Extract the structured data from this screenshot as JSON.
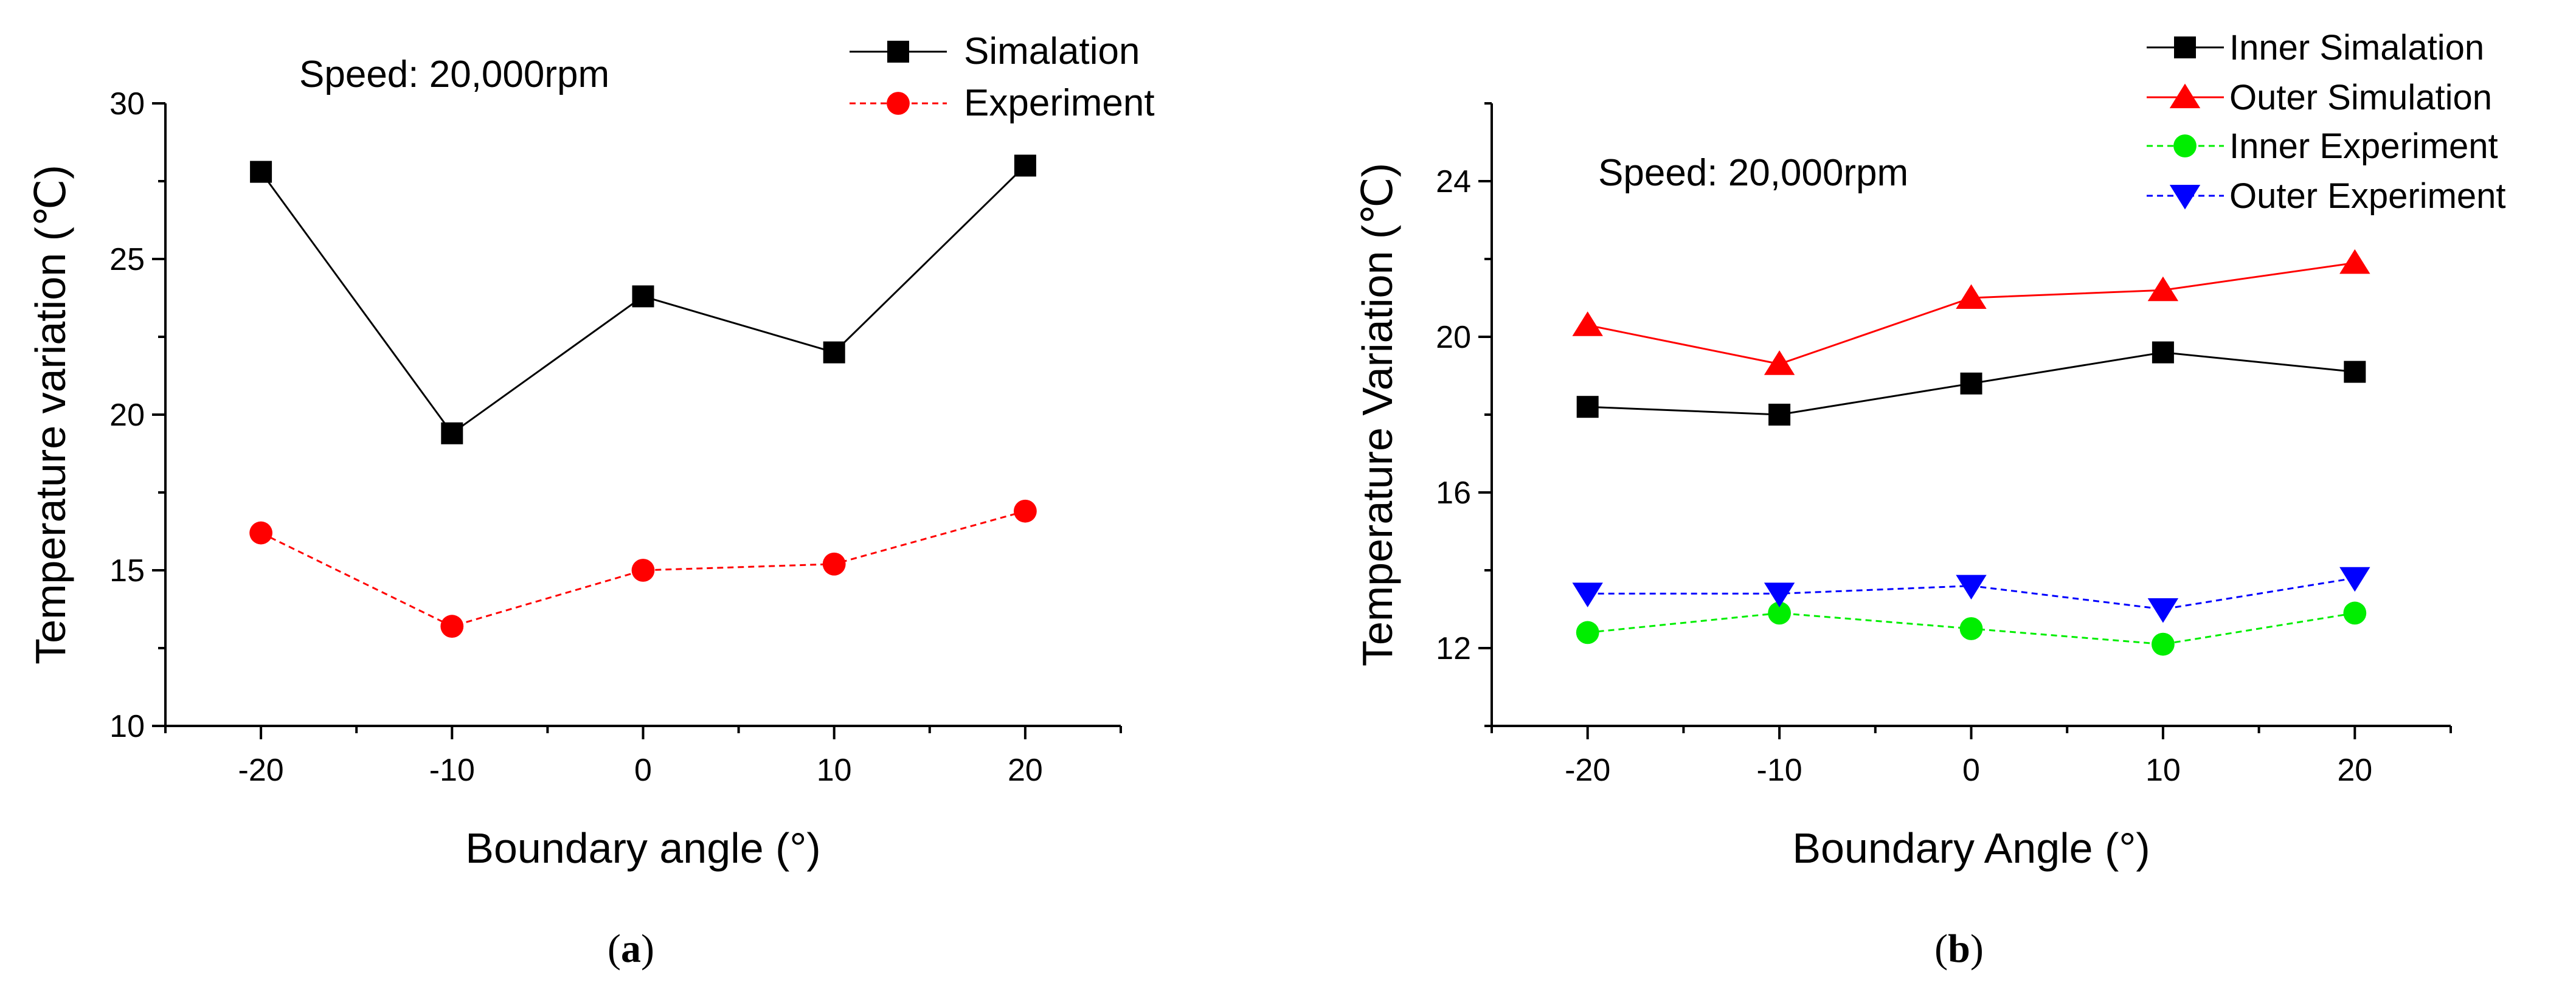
{
  "chart_data": [
    {
      "type": "line",
      "panel": "a",
      "caption_open": "(",
      "caption_letter": "a",
      "caption_close": ")",
      "annotation": "Speed: 20,000rpm",
      "xlabel": "Boundary angle (°)",
      "ylabel": "Temperature variation (℃)",
      "x": [
        -20,
        -10,
        0,
        10,
        20
      ],
      "xlim": [
        -25,
        25
      ],
      "ylim": [
        10,
        30
      ],
      "xticks": [
        -20,
        -10,
        0,
        10,
        20
      ],
      "yticks": [
        10,
        15,
        20,
        25,
        30
      ],
      "legend_position": "top-right",
      "series": [
        {
          "name": "Simalation",
          "values": [
            27.8,
            19.4,
            23.8,
            22.0,
            28.0
          ],
          "color": "#000000",
          "marker": "square",
          "line": "solid"
        },
        {
          "name": "Experiment",
          "values": [
            16.2,
            13.2,
            15.0,
            15.2,
            16.9
          ],
          "color": "#ff0000",
          "marker": "circle",
          "line": "dashed"
        }
      ]
    },
    {
      "type": "line",
      "panel": "b",
      "caption_open": "(",
      "caption_letter": "b",
      "caption_close": ")",
      "annotation": "Speed: 20,000rpm",
      "xlabel": "Boundary Angle (°)",
      "ylabel": "Temperature Variation (℃)",
      "x": [
        -20,
        -10,
        0,
        10,
        20
      ],
      "xlim": [
        -25,
        25
      ],
      "ylim": [
        10,
        26
      ],
      "xticks": [
        -20,
        -10,
        0,
        10,
        20
      ],
      "yticks": [
        12,
        16,
        20,
        24
      ],
      "legend_position": "top-right",
      "series": [
        {
          "name": "Inner Simalation",
          "values": [
            18.2,
            18.0,
            18.8,
            19.6,
            19.1
          ],
          "color": "#000000",
          "marker": "square",
          "line": "solid"
        },
        {
          "name": "Outer Simulation",
          "values": [
            20.3,
            19.3,
            21.0,
            21.2,
            21.9
          ],
          "color": "#ff0000",
          "marker": "triangle-up",
          "line": "solid"
        },
        {
          "name": "Inner Experiment",
          "values": [
            12.4,
            12.9,
            12.5,
            12.1,
            12.9
          ],
          "color": "#00ee00",
          "marker": "circle",
          "line": "dashed"
        },
        {
          "name": "Outer Experiment",
          "values": [
            13.4,
            13.4,
            13.6,
            13.0,
            13.8
          ],
          "color": "#0000ff",
          "marker": "triangle-down",
          "line": "dashed"
        }
      ]
    }
  ]
}
